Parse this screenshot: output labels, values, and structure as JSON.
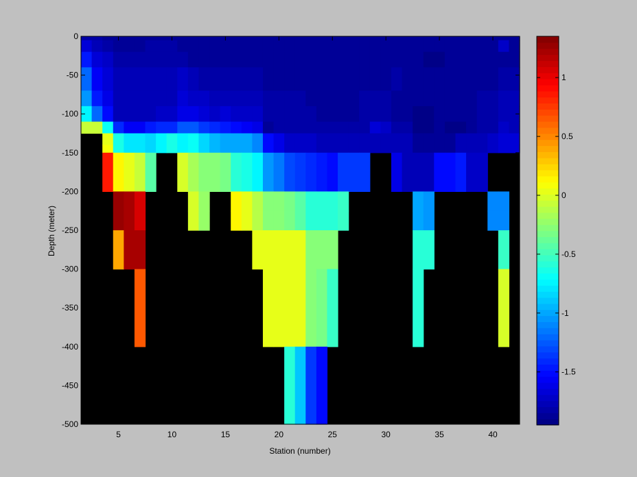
{
  "chart_data": {
    "type": "heatmap",
    "title": "",
    "xlabel": "Station (number)",
    "ylabel": "Depth (meter)",
    "xlim": [
      1.5,
      42.5
    ],
    "ylim": [
      -500,
      0
    ],
    "x_ticks": [
      5,
      10,
      15,
      20,
      25,
      30,
      35,
      40
    ],
    "y_ticks": [
      0,
      -50,
      -100,
      -150,
      -200,
      -250,
      -300,
      -350,
      -400,
      -450,
      -500
    ],
    "x_tick_labels": [
      "5",
      "10",
      "15",
      "20",
      "25",
      "30",
      "35",
      "40"
    ],
    "y_tick_labels": [
      "0",
      "-50",
      "-100",
      "-150",
      "-200",
      "-250",
      "-300",
      "-350",
      "-400",
      "-450",
      "-500"
    ],
    "colorbar": {
      "range": [
        -1.95,
        1.35
      ],
      "ticks": [
        1,
        0.5,
        0,
        -0.5,
        -1,
        -1.5
      ],
      "tick_labels": [
        "1",
        "0.5",
        "0",
        "-0.5",
        "-1",
        "-1.5"
      ],
      "colormap": "jet",
      "levels": 64
    },
    "missing_color": "#000000",
    "background_color": "#c0c0c0",
    "stations": [
      2,
      3,
      4,
      5,
      6,
      7,
      8,
      9,
      10,
      11,
      12,
      13,
      14,
      15,
      16,
      17,
      18,
      19,
      20,
      21,
      22,
      23,
      24,
      25,
      26,
      27,
      28,
      29,
      30,
      31,
      32,
      33,
      34,
      35,
      36,
      37,
      38,
      39,
      40,
      41,
      42
    ],
    "rows": [
      {
        "depth_top": 0,
        "depth_bottom": -5,
        "values": [
          -1.8,
          -1.8,
          -1.85,
          -1.85,
          -1.85,
          -1.85,
          -1.85,
          -1.85,
          -1.85,
          -1.85,
          -1.85,
          -1.85,
          -1.85,
          -1.85,
          -1.85,
          -1.85,
          -1.85,
          -1.85,
          -1.85,
          -1.85,
          -1.85,
          -1.85,
          -1.85,
          -1.85,
          -1.85,
          -1.85,
          -1.85,
          -1.85,
          -1.85,
          -1.85,
          -1.85,
          -1.85,
          -1.85,
          -1.85,
          -1.85,
          -1.85,
          -1.85,
          -1.85,
          -1.85,
          -1.85,
          -1.85
        ]
      },
      {
        "depth_top": -5,
        "depth_bottom": -20,
        "values": [
          -1.65,
          -1.75,
          -1.8,
          -1.85,
          -1.85,
          -1.85,
          -1.82,
          -1.82,
          -1.82,
          -1.85,
          -1.85,
          -1.85,
          -1.85,
          -1.85,
          -1.85,
          -1.85,
          -1.85,
          -1.85,
          -1.85,
          -1.85,
          -1.85,
          -1.85,
          -1.85,
          -1.85,
          -1.85,
          -1.85,
          -1.85,
          -1.85,
          -1.85,
          -1.85,
          -1.85,
          -1.85,
          -1.85,
          -1.85,
          -1.85,
          -1.85,
          -1.85,
          -1.85,
          -1.85,
          -1.7,
          -1.85
        ]
      },
      {
        "depth_top": -20,
        "depth_bottom": -40,
        "values": [
          -1.45,
          -1.65,
          -1.7,
          -1.8,
          -1.8,
          -1.8,
          -1.8,
          -1.8,
          -1.8,
          -1.8,
          -1.85,
          -1.85,
          -1.85,
          -1.85,
          -1.85,
          -1.85,
          -1.85,
          -1.85,
          -1.85,
          -1.85,
          -1.85,
          -1.85,
          -1.85,
          -1.85,
          -1.85,
          -1.85,
          -1.85,
          -1.85,
          -1.85,
          -1.85,
          -1.85,
          -1.85,
          -1.9,
          -1.9,
          -1.85,
          -1.85,
          -1.85,
          -1.85,
          -1.85,
          -1.85,
          -1.85
        ]
      },
      {
        "depth_top": -40,
        "depth_bottom": -70,
        "values": [
          -1.2,
          -1.55,
          -1.65,
          -1.75,
          -1.75,
          -1.75,
          -1.75,
          -1.75,
          -1.75,
          -1.72,
          -1.75,
          -1.8,
          -1.8,
          -1.8,
          -1.8,
          -1.8,
          -1.8,
          -1.85,
          -1.85,
          -1.85,
          -1.85,
          -1.85,
          -1.85,
          -1.85,
          -1.85,
          -1.85,
          -1.85,
          -1.85,
          -1.85,
          -1.8,
          -1.85,
          -1.85,
          -1.85,
          -1.85,
          -1.85,
          -1.85,
          -1.85,
          -1.85,
          -1.85,
          -1.8,
          -1.8
        ]
      },
      {
        "depth_top": -70,
        "depth_bottom": -90,
        "values": [
          -1.05,
          -1.45,
          -1.6,
          -1.75,
          -1.75,
          -1.75,
          -1.75,
          -1.75,
          -1.75,
          -1.65,
          -1.7,
          -1.72,
          -1.75,
          -1.75,
          -1.75,
          -1.75,
          -1.75,
          -1.8,
          -1.8,
          -1.82,
          -1.82,
          -1.85,
          -1.85,
          -1.85,
          -1.85,
          -1.85,
          -1.8,
          -1.8,
          -1.8,
          -1.85,
          -1.85,
          -1.85,
          -1.85,
          -1.85,
          -1.85,
          -1.85,
          -1.85,
          -1.8,
          -1.8,
          -1.75,
          -1.75
        ]
      },
      {
        "depth_top": -90,
        "depth_bottom": -110,
        "values": [
          -0.75,
          -1.2,
          -1.5,
          -1.75,
          -1.75,
          -1.75,
          -1.75,
          -1.72,
          -1.7,
          -1.6,
          -1.62,
          -1.65,
          -1.7,
          -1.68,
          -1.7,
          -1.7,
          -1.72,
          -1.8,
          -1.8,
          -1.8,
          -1.8,
          -1.82,
          -1.85,
          -1.85,
          -1.85,
          -1.85,
          -1.8,
          -1.8,
          -1.8,
          -1.85,
          -1.85,
          -1.9,
          -1.9,
          -1.85,
          -1.85,
          -1.85,
          -1.85,
          -1.82,
          -1.8,
          -1.75,
          -1.75
        ]
      },
      {
        "depth_top": -110,
        "depth_bottom": -125,
        "values": [
          -0.05,
          -0.05,
          -0.7,
          -1.4,
          -1.55,
          -1.55,
          -1.45,
          -1.4,
          -1.4,
          -1.25,
          -1.25,
          -1.35,
          -1.4,
          -1.45,
          -1.5,
          -1.55,
          -1.6,
          -1.85,
          -1.8,
          -1.8,
          -1.8,
          -1.8,
          -1.8,
          -1.8,
          -1.8,
          -1.8,
          -1.8,
          -1.65,
          -1.7,
          -1.8,
          -1.8,
          -1.9,
          -1.9,
          -1.85,
          -1.9,
          -1.9,
          -1.85,
          -1.8,
          -1.8,
          -1.7,
          -1.75
        ]
      },
      {
        "depth_top": -125,
        "depth_bottom": -140,
        "values": [
          null,
          null,
          0.05,
          -0.65,
          -0.8,
          -0.8,
          -0.85,
          -0.75,
          -0.65,
          -0.75,
          -0.7,
          -0.85,
          -0.95,
          -1.0,
          -1.0,
          -1.0,
          -1.1,
          -1.5,
          -1.6,
          -1.7,
          -1.7,
          -1.7,
          -1.75,
          -1.75,
          -1.75,
          -1.75,
          -1.75,
          -1.75,
          -1.75,
          -1.75,
          -1.75,
          -1.85,
          -1.85,
          -1.85,
          -1.85,
          -1.75,
          -1.75,
          -1.75,
          -1.7,
          -1.65,
          -1.65
        ]
      },
      {
        "depth_top": -140,
        "depth_bottom": -150,
        "values": [
          null,
          null,
          0.1,
          -0.65,
          -0.8,
          -0.8,
          -0.85,
          -0.75,
          -0.65,
          -0.75,
          -0.7,
          -0.85,
          -0.95,
          -1.0,
          -1.0,
          -1.0,
          -1.1,
          -1.5,
          -1.6,
          -1.7,
          -1.7,
          -1.7,
          -1.75,
          -1.75,
          -1.75,
          -1.75,
          -1.75,
          -1.75,
          -1.75,
          -1.75,
          -1.75,
          -1.85,
          -1.85,
          -1.85,
          -1.85,
          -1.75,
          -1.75,
          -1.75,
          -1.7,
          -1.65,
          -1.65
        ]
      },
      {
        "depth_top": -150,
        "depth_bottom": -200,
        "values": [
          null,
          null,
          0.85,
          0.15,
          0.05,
          -0.05,
          -0.45,
          null,
          null,
          0.0,
          -0.15,
          -0.25,
          -0.25,
          -0.35,
          -0.6,
          -0.65,
          -0.75,
          -1.05,
          -1.15,
          -1.3,
          -1.35,
          -1.4,
          -1.45,
          -1.5,
          -1.35,
          -1.35,
          -1.35,
          null,
          null,
          -1.6,
          -1.75,
          -1.75,
          -1.75,
          -1.5,
          -1.5,
          -1.45,
          -1.7,
          -1.7,
          null,
          null,
          null
        ]
      },
      {
        "depth_top": -200,
        "depth_bottom": -225,
        "values": [
          null,
          null,
          null,
          1.25,
          1.2,
          1.05,
          null,
          null,
          null,
          null,
          0.0,
          -0.2,
          null,
          null,
          0.15,
          0.05,
          -0.1,
          -0.25,
          -0.3,
          -0.35,
          -0.45,
          -0.6,
          -0.6,
          -0.6,
          -0.55,
          null,
          null,
          null,
          null,
          null,
          null,
          -1.0,
          -1.05,
          null,
          null,
          null,
          null,
          null,
          -1.1,
          -1.1,
          null
        ]
      },
      {
        "depth_top": -225,
        "depth_bottom": -250,
        "values": [
          null,
          null,
          null,
          1.25,
          1.2,
          1.05,
          null,
          null,
          null,
          null,
          0.0,
          -0.2,
          null,
          null,
          0.15,
          0.05,
          -0.1,
          -0.25,
          -0.3,
          -0.35,
          -0.45,
          -0.6,
          -0.6,
          -0.6,
          -0.55,
          null,
          null,
          null,
          null,
          null,
          null,
          -1.0,
          -1.05,
          null,
          null,
          null,
          null,
          null,
          -1.1,
          -1.1,
          null
        ]
      },
      {
        "depth_top": -250,
        "depth_bottom": -300,
        "values": [
          null,
          null,
          null,
          0.4,
          1.2,
          1.2,
          null,
          null,
          null,
          null,
          null,
          null,
          null,
          null,
          null,
          null,
          0.05,
          0.05,
          0.05,
          0.05,
          0.05,
          -0.25,
          -0.25,
          -0.25,
          null,
          null,
          null,
          null,
          null,
          null,
          null,
          -0.6,
          -0.6,
          null,
          null,
          null,
          null,
          null,
          null,
          -0.55,
          null
        ]
      },
      {
        "depth_top": -300,
        "depth_bottom": -400,
        "values": [
          null,
          null,
          null,
          null,
          null,
          0.65,
          null,
          null,
          null,
          null,
          null,
          null,
          null,
          null,
          null,
          null,
          null,
          0.05,
          0.05,
          0.05,
          0.05,
          -0.25,
          -0.35,
          -0.55,
          null,
          null,
          null,
          null,
          null,
          null,
          null,
          -0.6,
          null,
          null,
          null,
          null,
          null,
          null,
          null,
          0.0,
          null
        ]
      },
      {
        "depth_top": -400,
        "depth_bottom": -500,
        "values": [
          null,
          null,
          null,
          null,
          null,
          null,
          null,
          null,
          null,
          null,
          null,
          null,
          null,
          null,
          null,
          null,
          null,
          null,
          null,
          -0.6,
          -0.9,
          -1.35,
          -1.5,
          null,
          null,
          null,
          null,
          null,
          null,
          null,
          null,
          null,
          null,
          null,
          null,
          null,
          null,
          null,
          null,
          null,
          null
        ]
      }
    ]
  }
}
